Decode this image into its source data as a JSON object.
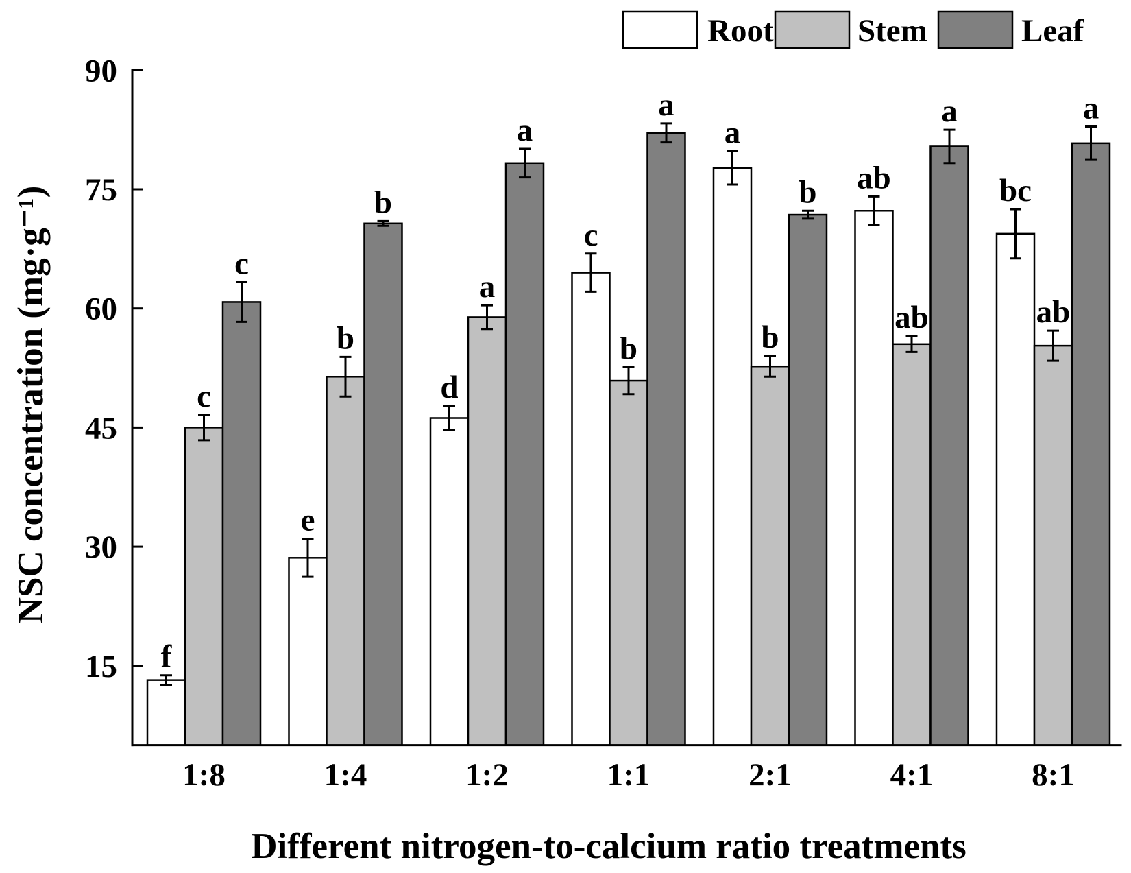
{
  "chart_data": {
    "type": "bar",
    "xlabel": "Different nitrogen-to-calcium ratio treatments",
    "ylabel": "NSC concentration (mg·g⁻¹)",
    "categories": [
      "1:8",
      "1:4",
      "1:2",
      "1:1",
      "2:1",
      "4:1",
      "8:1"
    ],
    "ylim": [
      5,
      90
    ],
    "yticks": [
      15,
      30,
      45,
      60,
      75,
      90
    ],
    "grid": false,
    "legend_position": "top-right",
    "series": [
      {
        "name": "Root",
        "color": "#ffffff",
        "values": [
          13.2,
          28.6,
          46.2,
          64.5,
          77.7,
          72.3,
          69.4
        ],
        "errors": [
          0.6,
          2.4,
          1.5,
          2.4,
          2.1,
          1.8,
          3.1
        ],
        "letters": [
          "f",
          "e",
          "d",
          "c",
          "a",
          "ab",
          "bc"
        ]
      },
      {
        "name": "Stem",
        "color": "#c0c0c0",
        "values": [
          45.0,
          51.4,
          58.9,
          50.9,
          52.7,
          55.5,
          55.3
        ],
        "errors": [
          1.6,
          2.5,
          1.5,
          1.7,
          1.3,
          1.0,
          1.9
        ],
        "letters": [
          "c",
          "b",
          "a",
          "b",
          "b",
          "ab",
          "ab"
        ]
      },
      {
        "name": "Leaf",
        "color": "#808080",
        "values": [
          60.8,
          70.7,
          78.3,
          82.1,
          71.8,
          80.4,
          80.8
        ],
        "errors": [
          2.5,
          0.3,
          1.8,
          1.2,
          0.5,
          2.1,
          2.1
        ],
        "letters": [
          "c",
          "b",
          "a",
          "a",
          "b",
          "a",
          "a"
        ]
      }
    ]
  }
}
